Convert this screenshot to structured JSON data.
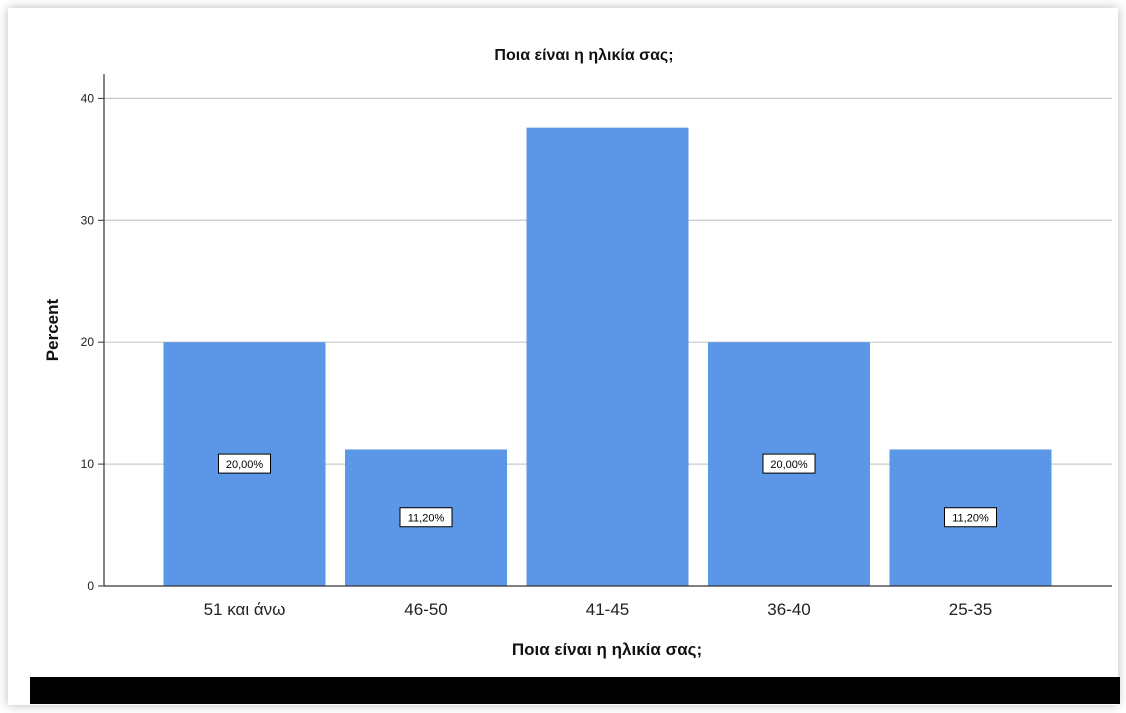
{
  "chart_data": {
    "type": "bar",
    "title": "Ποια είναι η ηλικία σας;",
    "xlabel": "Ποια είναι η ηλικία σας;",
    "ylabel": "Percent",
    "categories": [
      "51 και άνω",
      "46-50",
      "41-45",
      "36-40",
      "25-35"
    ],
    "values": [
      20.0,
      11.2,
      37.6,
      20.0,
      11.2
    ],
    "data_labels": [
      "20,00%",
      "11,20%",
      "",
      "20,00%",
      "11,20%"
    ],
    "ylim": [
      0,
      42
    ],
    "yticks": [
      0,
      10,
      20,
      30,
      40
    ],
    "ytick_labels": [
      "0",
      "10",
      "20",
      "30",
      "40"
    ],
    "grid": true,
    "legend": "none",
    "colors": {
      "bar": "#5b97e6",
      "grid": "#c8c8c8",
      "axis": "#333333"
    }
  }
}
